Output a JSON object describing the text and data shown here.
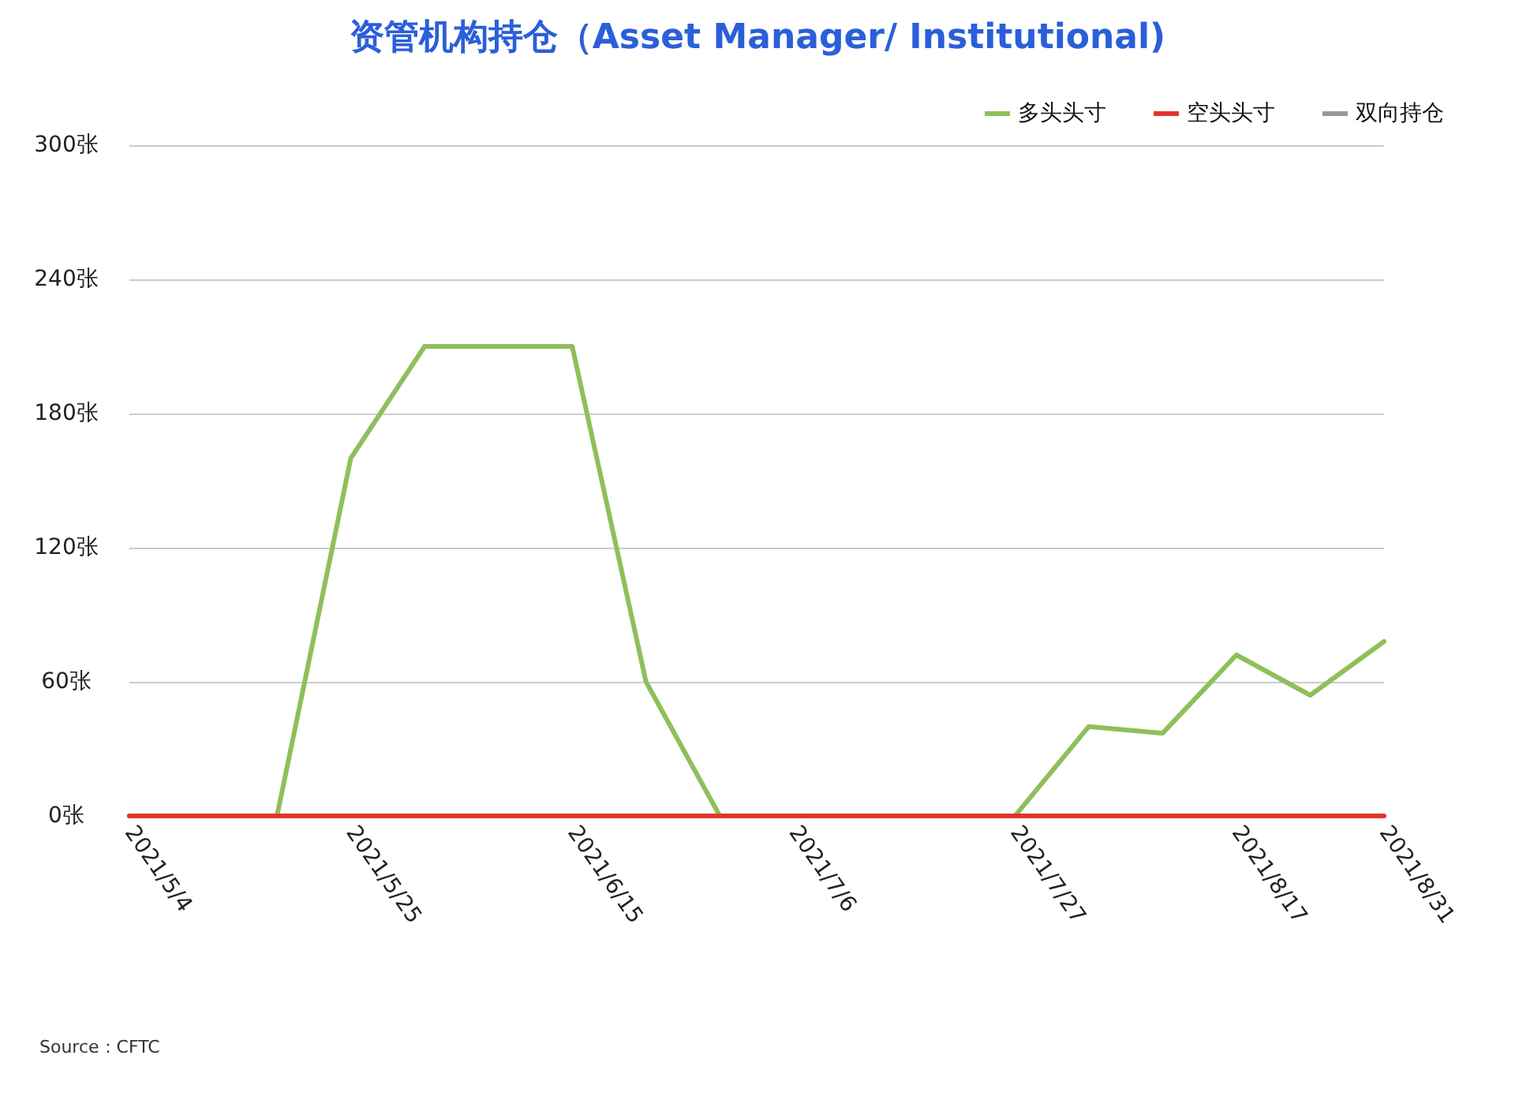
{
  "chart_data": {
    "type": "line",
    "title": "资管机构持仓（Asset Manager/ Institutional)",
    "categories": [
      "2021/5/4",
      null,
      null,
      "2021/5/25",
      null,
      null,
      "2021/6/15",
      null,
      null,
      "2021/7/6",
      null,
      null,
      "2021/7/27",
      null,
      null,
      "2021/8/17",
      null,
      "2021/8/31"
    ],
    "series": [
      {
        "name": "多头头寸",
        "color": "#8fbf5a",
        "values": [
          0,
          0,
          0,
          160,
          210,
          210,
          210,
          60,
          0,
          0,
          0,
          0,
          0,
          40,
          37,
          72,
          54,
          78
        ]
      },
      {
        "name": "空头头寸",
        "color": "#e0352b",
        "values": [
          0,
          0,
          0,
          0,
          0,
          0,
          0,
          0,
          0,
          0,
          0,
          0,
          0,
          0,
          0,
          0,
          0,
          0
        ]
      },
      {
        "name": "双向持仓",
        "color": "#999999",
        "values": [
          null,
          null,
          null,
          null,
          null,
          null,
          null,
          null,
          null,
          null,
          null,
          null,
          null,
          null,
          null,
          null,
          null,
          null
        ]
      }
    ],
    "ylim": [
      0,
      300
    ],
    "yticks": [
      {
        "value": 0,
        "label": "0张"
      },
      {
        "value": 60,
        "label": "60张"
      },
      {
        "value": 120,
        "label": "120张"
      },
      {
        "value": 180,
        "label": "180张"
      },
      {
        "value": 240,
        "label": "240张"
      },
      {
        "value": 300,
        "label": "300张"
      }
    ],
    "grid": "y",
    "legend": "top right",
    "marker": "none",
    "annotations": [
      "Source：CFTC"
    ]
  }
}
